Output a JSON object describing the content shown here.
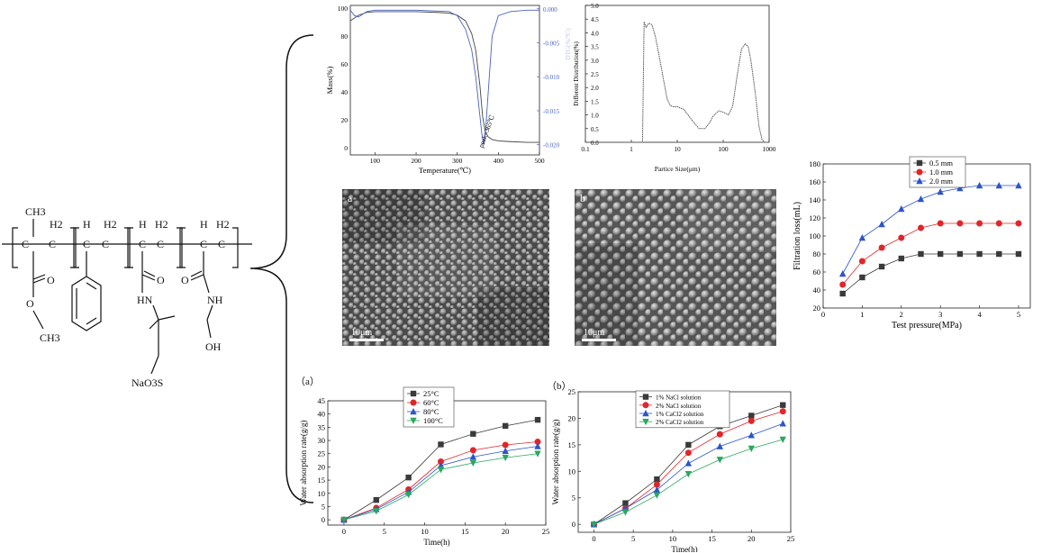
{
  "structure": {
    "substituents": [
      "CH3",
      "H2",
      "H",
      "H2",
      "H",
      "H2",
      "H",
      "H2"
    ],
    "groups": [
      "O",
      "O",
      "O",
      "O",
      "CH3",
      "HN",
      "NH",
      "OH",
      "NaO3S"
    ]
  },
  "sem": {
    "a": {
      "tag": "a",
      "scale": "10μm"
    },
    "b": {
      "tag": "b",
      "scale": "10μm"
    }
  },
  "panel_labels": {
    "a": "（a）",
    "b": "（b）"
  },
  "colors": {
    "black": "#3a3a3a",
    "red": "#e0262a",
    "blue": "#2b55c8",
    "green": "#2aa860",
    "tga_mass": "#444444",
    "tga_dtg": "#4a62c4",
    "grey": "#555555"
  },
  "chart_data": [
    {
      "id": "tga",
      "type": "line",
      "xlabel": "Temperature(℃)",
      "ylabel": "Mass(%)",
      "y2label": "DTG(%/℃)",
      "annotation": "peak=365℃",
      "xlim": [
        40,
        500
      ],
      "ylim": [
        -5,
        102
      ],
      "y2lim": [
        -0.0215,
        0.0005
      ],
      "xticks": [
        100,
        200,
        300,
        400,
        500
      ],
      "yticks": [
        0,
        20,
        40,
        60,
        80,
        100
      ],
      "y2ticks": [
        "0.000",
        "-0.005",
        "-0.010",
        "-0.015",
        "-0.020"
      ],
      "series": [
        {
          "axis": "left",
          "x": [
            40,
            60,
            80,
            100,
            150,
            200,
            250,
            280,
            300,
            320,
            335,
            345,
            355,
            362,
            368,
            375,
            385,
            400,
            430,
            470,
            500
          ],
          "y": [
            91,
            95,
            97,
            97.5,
            97.5,
            97.5,
            97,
            96.5,
            95,
            91,
            82,
            70,
            45,
            22,
            12,
            8,
            6,
            5,
            4.5,
            4,
            4
          ]
        },
        {
          "axis": "right",
          "x": [
            40,
            50,
            60,
            80,
            100,
            200,
            280,
            300,
            320,
            335,
            345,
            352,
            360,
            365,
            370,
            378,
            385,
            400,
            430,
            470,
            500
          ],
          "y": [
            -0.0002,
            -0.001,
            -0.0012,
            -0.0004,
            -0.0002,
            -0.0002,
            -0.0004,
            -0.001,
            -0.003,
            -0.006,
            -0.01,
            -0.014,
            -0.0185,
            -0.02,
            -0.017,
            -0.01,
            -0.004,
            -0.001,
            -0.0004,
            -0.0002,
            -0.0002
          ]
        }
      ]
    },
    {
      "id": "psd",
      "type": "line",
      "xscale": "log",
      "xlabel": "Partice Size(μm)",
      "ylabel": "Different Distribution(%)",
      "xlim": [
        0.1,
        1000
      ],
      "ylim": [
        0,
        5
      ],
      "xticks": [
        "0.1",
        "1",
        "10",
        "100",
        "1000"
      ],
      "yticks": [
        "0.0",
        "0.5",
        "1.0",
        "1.5",
        "2.0",
        "2.5",
        "3.0",
        "3.5",
        "4.0",
        "4.5",
        "5.0"
      ],
      "series": [
        {
          "x": [
            0.1,
            0.5,
            1,
            1.5,
            1.75,
            1.9,
            2.1,
            2.4,
            2.8,
            3.3,
            4,
            5,
            6,
            7,
            8,
            10,
            14,
            20,
            25,
            30,
            40,
            50,
            60,
            80,
            100,
            130,
            160,
            200,
            250,
            300,
            350,
            400,
            500,
            600,
            700,
            800,
            1000
          ],
          "y": [
            0,
            0,
            0,
            0,
            0,
            4.4,
            4.2,
            4.35,
            4.3,
            3.9,
            3.2,
            2.3,
            1.6,
            1.35,
            1.3,
            1.3,
            1.2,
            0.85,
            0.65,
            0.5,
            0.5,
            0.7,
            0.95,
            1.15,
            1.1,
            1.0,
            1.3,
            2.4,
            3.4,
            3.6,
            3.5,
            3.0,
            1.8,
            0.6,
            0.1,
            0,
            0
          ]
        }
      ]
    },
    {
      "id": "filtration",
      "type": "line",
      "xlabel": "Test pressure(MPa)",
      "ylabel": "Filtration loss(mL)",
      "xlim": [
        0,
        5.3
      ],
      "ylim": [
        20,
        180
      ],
      "xticks": [
        0,
        1,
        2,
        3,
        4,
        5
      ],
      "yticks": [
        20,
        40,
        60,
        80,
        100,
        120,
        140,
        160,
        180
      ],
      "legend": "top-right",
      "x": [
        0.5,
        1.0,
        1.5,
        2.0,
        2.5,
        3.0,
        3.5,
        4.0,
        4.5,
        5.0
      ],
      "series": [
        {
          "name": "0.5 mm",
          "color": "#3a3a3a",
          "marker": "square",
          "values": [
            36,
            54,
            66,
            75,
            80,
            80,
            80,
            80,
            80,
            80
          ]
        },
        {
          "name": "1.0 mm",
          "color": "#e0262a",
          "marker": "circle",
          "values": [
            46,
            72,
            87,
            98,
            109,
            114,
            114,
            114,
            114,
            114
          ]
        },
        {
          "name": "2.0 mm",
          "color": "#2b55c8",
          "marker": "triangle",
          "values": [
            58,
            98,
            113,
            130,
            141,
            149,
            153,
            156,
            156,
            156
          ]
        }
      ]
    },
    {
      "id": "temp",
      "type": "line",
      "xlabel": "Time(h)",
      "ylabel": "Water absorption rate(g/g)",
      "xlim": [
        -2,
        25
      ],
      "ylim": [
        -2,
        45
      ],
      "xticks": [
        0,
        5,
        10,
        15,
        20,
        25
      ],
      "yticks": [
        0,
        5,
        10,
        15,
        20,
        25,
        30,
        35,
        40,
        45
      ],
      "legend": "top-center",
      "x": [
        0,
        4,
        8,
        12,
        16,
        20,
        24
      ],
      "series": [
        {
          "name": "25°C",
          "color": "#3a3a3a",
          "marker": "square",
          "values": [
            0,
            7.5,
            16,
            28.5,
            32.5,
            35.5,
            37.8
          ]
        },
        {
          "name": "60°C",
          "color": "#e0262a",
          "marker": "circle",
          "values": [
            0,
            4.5,
            11.5,
            22,
            26.3,
            28.3,
            29.5
          ]
        },
        {
          "name": "80°C",
          "color": "#2b55c8",
          "marker": "triangle",
          "values": [
            0,
            4,
            10.5,
            20.5,
            23.8,
            26,
            27.8
          ]
        },
        {
          "name": "100°C",
          "color": "#2aa860",
          "marker": "invtri",
          "values": [
            0,
            3.3,
            9.5,
            19,
            21.5,
            23.5,
            25
          ]
        }
      ]
    },
    {
      "id": "salt",
      "type": "line",
      "xlabel": "Time(h)",
      "ylabel": "Water absorption rate(g/g)",
      "xlim": [
        -2,
        25
      ],
      "ylim": [
        -1.5,
        25
      ],
      "xticks": [
        0,
        5,
        10,
        15,
        20,
        25
      ],
      "yticks": [
        0,
        5,
        10,
        15,
        20,
        25
      ],
      "legend": "top-left",
      "x": [
        0,
        4,
        8,
        12,
        16,
        20,
        24
      ],
      "series": [
        {
          "name": "1% NaCl solution",
          "color": "#3a3a3a",
          "marker": "square",
          "values": [
            0,
            4,
            8.5,
            15,
            18.5,
            20.5,
            22.5
          ]
        },
        {
          "name": "2% NaCl solution",
          "color": "#e0262a",
          "marker": "circle",
          "values": [
            0,
            3,
            7.5,
            13.5,
            17,
            19.5,
            21.3
          ]
        },
        {
          "name": "1% CaCl2 solution",
          "color": "#2b55c8",
          "marker": "triangle",
          "values": [
            0,
            3,
            6.5,
            11.5,
            14.7,
            16.8,
            19
          ]
        },
        {
          "name": "2% CaCl2 solution",
          "color": "#2aa860",
          "marker": "invtri",
          "values": [
            0,
            2.3,
            5.5,
            9.5,
            12.2,
            14.3,
            16
          ]
        }
      ]
    }
  ]
}
